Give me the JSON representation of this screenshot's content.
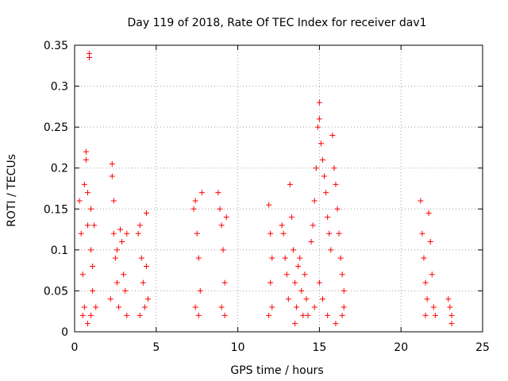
{
  "chart_data": {
    "type": "scatter",
    "title": "Day 119 of 2018, Rate Of TEC Index for receiver dav1",
    "xlabel": "GPS time / hours",
    "ylabel": "ROTI / TECUs",
    "xlim": [
      0,
      25
    ],
    "ylim": [
      0,
      0.35
    ],
    "x_ticks": [
      "0",
      "5",
      "10",
      "15",
      "20",
      "25"
    ],
    "y_ticks": [
      "0",
      "0.05",
      "0.1",
      "0.15",
      "0.2",
      "0.25",
      "0.3",
      "0.35"
    ],
    "grid": true,
    "marker": "+",
    "color": "#ff0000",
    "series": [
      {
        "points": [
          [
            0.3,
            0.16
          ],
          [
            0.4,
            0.12
          ],
          [
            0.5,
            0.07
          ],
          [
            0.6,
            0.03
          ],
          [
            0.6,
            0.18
          ],
          [
            0.7,
            0.22
          ],
          [
            0.7,
            0.21
          ],
          [
            0.8,
            0.17
          ],
          [
            0.8,
            0.13
          ],
          [
            0.9,
            0.34
          ],
          [
            0.9,
            0.335
          ],
          [
            1.0,
            0.15
          ],
          [
            1.0,
            0.1
          ],
          [
            1.1,
            0.08
          ],
          [
            1.1,
            0.05
          ],
          [
            1.2,
            0.13
          ],
          [
            1.3,
            0.03
          ],
          [
            1.0,
            0.02
          ],
          [
            0.5,
            0.02
          ],
          [
            0.8,
            0.01
          ],
          [
            2.3,
            0.205
          ],
          [
            2.3,
            0.19
          ],
          [
            2.4,
            0.16
          ],
          [
            2.4,
            0.12
          ],
          [
            2.5,
            0.09
          ],
          [
            2.6,
            0.06
          ],
          [
            2.7,
            0.03
          ],
          [
            2.8,
            0.125
          ],
          [
            2.9,
            0.11
          ],
          [
            3.0,
            0.07
          ],
          [
            3.1,
            0.05
          ],
          [
            3.2,
            0.02
          ],
          [
            3.2,
            0.12
          ],
          [
            2.2,
            0.04
          ],
          [
            2.6,
            0.1
          ],
          [
            3.9,
            0.12
          ],
          [
            4.0,
            0.13
          ],
          [
            4.1,
            0.09
          ],
          [
            4.2,
            0.06
          ],
          [
            4.3,
            0.03
          ],
          [
            4.4,
            0.145
          ],
          [
            4.4,
            0.08
          ],
          [
            4.5,
            0.04
          ],
          [
            4.0,
            0.02
          ],
          [
            7.3,
            0.15
          ],
          [
            7.4,
            0.16
          ],
          [
            7.5,
            0.12
          ],
          [
            7.6,
            0.09
          ],
          [
            7.7,
            0.05
          ],
          [
            7.8,
            0.17
          ],
          [
            7.4,
            0.03
          ],
          [
            7.6,
            0.02
          ],
          [
            8.8,
            0.17
          ],
          [
            8.9,
            0.15
          ],
          [
            9.0,
            0.13
          ],
          [
            9.1,
            0.1
          ],
          [
            9.2,
            0.06
          ],
          [
            9.3,
            0.14
          ],
          [
            9.0,
            0.03
          ],
          [
            9.2,
            0.02
          ],
          [
            11.9,
            0.155
          ],
          [
            12.0,
            0.12
          ],
          [
            12.1,
            0.09
          ],
          [
            12.0,
            0.06
          ],
          [
            12.1,
            0.03
          ],
          [
            11.9,
            0.02
          ],
          [
            12.7,
            0.13
          ],
          [
            12.8,
            0.12
          ],
          [
            12.9,
            0.09
          ],
          [
            13.0,
            0.07
          ],
          [
            13.1,
            0.04
          ],
          [
            13.2,
            0.18
          ],
          [
            13.3,
            0.14
          ],
          [
            13.4,
            0.1
          ],
          [
            13.5,
            0.06
          ],
          [
            13.6,
            0.03
          ],
          [
            13.7,
            0.08
          ],
          [
            13.8,
            0.09
          ],
          [
            13.9,
            0.05
          ],
          [
            14.0,
            0.02
          ],
          [
            14.1,
            0.07
          ],
          [
            14.2,
            0.04
          ],
          [
            14.3,
            0.02
          ],
          [
            13.5,
            0.01
          ],
          [
            14.5,
            0.11
          ],
          [
            14.6,
            0.13
          ],
          [
            14.7,
            0.16
          ],
          [
            14.8,
            0.2
          ],
          [
            14.9,
            0.25
          ],
          [
            15.0,
            0.28
          ],
          [
            15.0,
            0.26
          ],
          [
            15.1,
            0.23
          ],
          [
            15.2,
            0.21
          ],
          [
            15.3,
            0.19
          ],
          [
            15.4,
            0.17
          ],
          [
            15.5,
            0.14
          ],
          [
            15.6,
            0.12
          ],
          [
            15.7,
            0.1
          ],
          [
            15.8,
            0.24
          ],
          [
            15.9,
            0.2
          ],
          [
            16.0,
            0.18
          ],
          [
            16.1,
            0.15
          ],
          [
            16.2,
            0.12
          ],
          [
            16.3,
            0.09
          ],
          [
            16.4,
            0.07
          ],
          [
            16.5,
            0.05
          ],
          [
            16.5,
            0.03
          ],
          [
            15.0,
            0.06
          ],
          [
            15.2,
            0.04
          ],
          [
            15.5,
            0.02
          ],
          [
            14.7,
            0.03
          ],
          [
            16.4,
            0.02
          ],
          [
            16.0,
            0.01
          ],
          [
            21.2,
            0.16
          ],
          [
            21.3,
            0.12
          ],
          [
            21.4,
            0.09
          ],
          [
            21.5,
            0.06
          ],
          [
            21.6,
            0.04
          ],
          [
            21.7,
            0.145
          ],
          [
            21.8,
            0.11
          ],
          [
            21.9,
            0.07
          ],
          [
            22.0,
            0.03
          ],
          [
            22.1,
            0.02
          ],
          [
            21.5,
            0.02
          ],
          [
            22.9,
            0.04
          ],
          [
            23.0,
            0.03
          ],
          [
            23.1,
            0.02
          ],
          [
            23.1,
            0.01
          ]
        ]
      }
    ]
  }
}
